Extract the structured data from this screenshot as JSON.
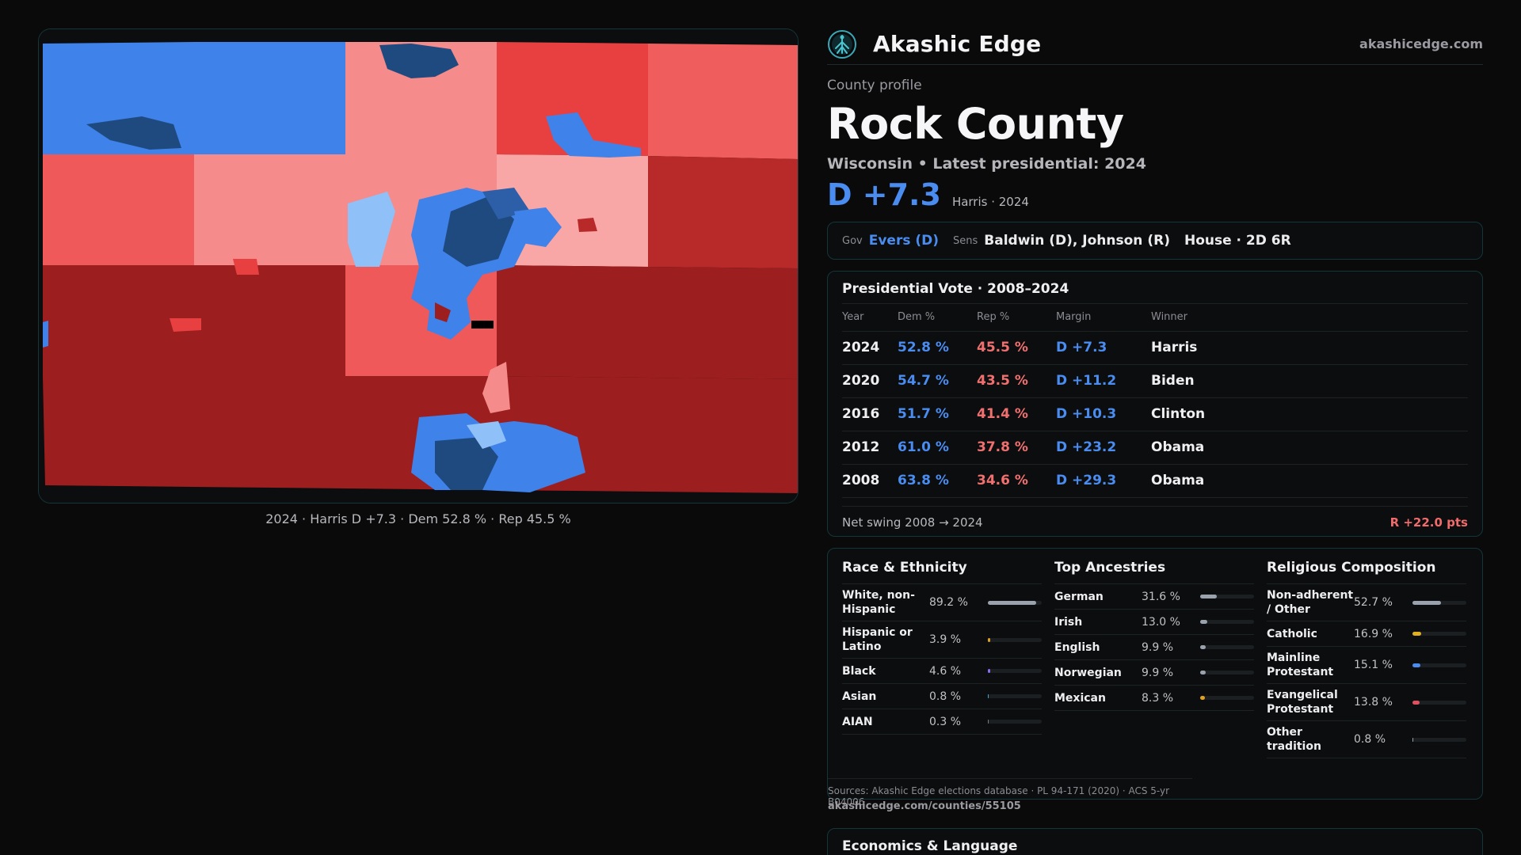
{
  "brand": {
    "name": "Akashic Edge",
    "url": "akashicedge.com",
    "logo_icon": "tree-of-life-icon"
  },
  "map": {
    "caption": "2024 · Harris D +7.3 · Dem 52.8 % · Rep 45.5 %",
    "colors": {
      "safe_dem": "#1f4a80",
      "likely_dem": "#3f82ea",
      "lean_dem": "#8fc0f7",
      "lean_rep": "#f58b8b",
      "likely_rep": "#ef5959",
      "safe_rep": "#9d1e1e"
    }
  },
  "profile": {
    "kicker": "County profile",
    "name": "Rock County",
    "subline": "Wisconsin • Latest presidential: 2024",
    "margin": "D +7.3",
    "margin_sub": "Harris · 2024"
  },
  "officials": {
    "gov_label": "Gov",
    "gov": "Evers (D)",
    "sens_label": "Sens",
    "sens": "Baldwin (D), Johnson (R)",
    "house": "House · 2D 6R"
  },
  "presidential": {
    "title": "Presidential Vote · 2008–2024",
    "headers": [
      "Year",
      "Dem %",
      "Rep %",
      "Margin",
      "Winner"
    ],
    "rows": [
      [
        "2024",
        "52.8 %",
        "45.5 %",
        "D +7.3",
        "Harris"
      ],
      [
        "2020",
        "54.7 %",
        "43.5 %",
        "D +11.2",
        "Biden"
      ],
      [
        "2016",
        "51.7 %",
        "41.4 %",
        "D +10.3",
        "Clinton"
      ],
      [
        "2012",
        "61.0 %",
        "37.8 %",
        "D +23.2",
        "Obama"
      ],
      [
        "2008",
        "63.8 %",
        "34.6 %",
        "D +29.3",
        "Obama"
      ]
    ],
    "swing_label": "Net swing 2008 → 2024",
    "swing_value": "R +22.0 pts"
  },
  "demographics": {
    "race": {
      "title": "Race & Ethnicity",
      "items": [
        {
          "label": "White, non-Hispanic",
          "value": "89.2 %",
          "share": 0.892,
          "color": "#9aa3ad"
        },
        {
          "label": "Hispanic or Latino",
          "value": "3.9 %",
          "share": 0.039,
          "color": "#e0a020"
        },
        {
          "label": "Black",
          "value": "4.6 %",
          "share": 0.046,
          "color": "#8a6cf0"
        },
        {
          "label": "Asian",
          "value": "0.8 %",
          "share": 0.008,
          "color": "#4aa0d0"
        },
        {
          "label": "AIAN",
          "value": "0.3 %",
          "share": 0.003,
          "color": "#7a7a80"
        }
      ]
    },
    "ancestry": {
      "title": "Top Ancestries",
      "items": [
        {
          "label": "German",
          "value": "31.6 %",
          "share": 0.316,
          "color": "#9aa3ad"
        },
        {
          "label": "Irish",
          "value": "13.0 %",
          "share": 0.13,
          "color": "#9aa3ad"
        },
        {
          "label": "English",
          "value": "9.9 %",
          "share": 0.099,
          "color": "#9aa3ad"
        },
        {
          "label": "Norwegian",
          "value": "9.9 %",
          "share": 0.099,
          "color": "#9aa3ad"
        },
        {
          "label": "Mexican",
          "value": "8.3 %",
          "share": 0.083,
          "color": "#e0a020"
        }
      ]
    },
    "religion": {
      "title": "Religious Composition",
      "items": [
        {
          "label": "Non-adherent / Other",
          "value": "52.7 %",
          "share": 0.527,
          "color": "#9aa3ad"
        },
        {
          "label": "Catholic",
          "value": "16.9 %",
          "share": 0.169,
          "color": "#e0b020"
        },
        {
          "label": "Mainline Protestant",
          "value": "15.1 %",
          "share": 0.151,
          "color": "#4a8cf0"
        },
        {
          "label": "Evangelical Protestant",
          "value": "13.8 %",
          "share": 0.138,
          "color": "#e05060"
        },
        {
          "label": "Other tradition",
          "value": "0.8 %",
          "share": 0.008,
          "color": "#9aa3ad"
        }
      ]
    },
    "sources": "Sources: Akashic Edge elections database · PL 94-171 (2020) · ACS 5-yr B04006",
    "sources_url": "akashicedge.com/counties/55105"
  },
  "economics": {
    "title": "Economics & Language"
  }
}
